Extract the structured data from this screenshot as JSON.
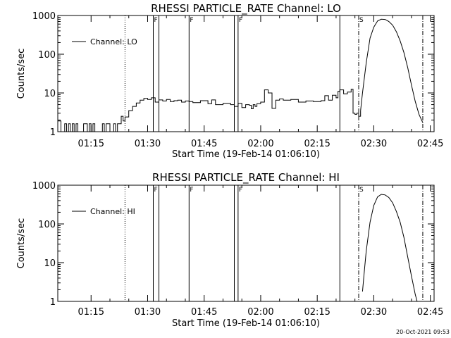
{
  "footer": {
    "timestamp": "20-Oct-2021 09:53"
  },
  "chart_data": [
    {
      "type": "line",
      "title": "RHESSI PARTICLE_RATE Channel: LO",
      "xlabel": "Start Time (19-Feb-14 01:06:10)",
      "ylabel": "Counts/sec",
      "yscale": "log",
      "ylim": [
        1,
        1000
      ],
      "xlim": [
        "01:06:10",
        "02:46:00"
      ],
      "xticks": [
        "01:15",
        "01:30",
        "01:45",
        "02:00",
        "02:15",
        "02:30",
        "02:45"
      ],
      "yticks": [
        "1",
        "10",
        "100",
        "1000"
      ],
      "legend": {
        "label": "Channel: LO",
        "position": "top-left"
      },
      "grid": false,
      "markers": {
        "solid_lines": [
          "01:31:30",
          "01:33:00",
          "01:41:00",
          "01:53:00",
          "01:54:00",
          "02:21:00"
        ],
        "dotted_lines": [
          "01:24:00"
        ],
        "dash_dot_lines": [
          "02:26:00",
          "02:43:00"
        ],
        "flags": [
          {
            "label": "F",
            "time": "01:31:30"
          },
          {
            "label": "F",
            "time": "01:41:00"
          },
          {
            "label": "F",
            "time": "01:54:00"
          },
          {
            "label": "S",
            "time": "02:26:00"
          }
        ]
      },
      "series": [
        {
          "x": [
            "01:06:10",
            "01:07:00",
            "01:08:00",
            "01:08:30",
            "01:09:00",
            "01:09:30",
            "01:10:00",
            "01:10:30",
            "01:11:00",
            "01:11:30",
            "01:12:00",
            "01:13:00",
            "01:14:00",
            "01:14:30",
            "01:15:00",
            "01:15:30",
            "01:16:00",
            "01:17:00",
            "01:18:00",
            "01:18:30",
            "01:19:00",
            "01:20:00",
            "01:21:00",
            "01:21:30",
            "01:22:00",
            "01:22:30",
            "01:23:00",
            "01:23:30",
            "01:24:00",
            "01:25:00",
            "01:26:00",
            "01:27:00",
            "01:28:00",
            "01:29:00",
            "01:30:00",
            "01:31:00",
            "01:32:00",
            "01:33:00",
            "01:34:00",
            "01:35:00",
            "01:36:00",
            "01:37:00",
            "01:38:00",
            "01:39:00",
            "01:40:00",
            "01:41:00",
            "01:42:00",
            "01:44:00",
            "01:46:00",
            "01:47:00",
            "01:48:00",
            "01:50:00",
            "01:52:00",
            "01:53:00",
            "01:54:00",
            "01:55:00",
            "01:56:00",
            "01:57:00",
            "01:57:30",
            "01:58:00",
            "01:58:30",
            "01:59:00",
            "02:00:00",
            "02:01:00",
            "02:02:00",
            "02:03:00",
            "02:04:00",
            "02:05:00",
            "02:06:00",
            "02:08:00",
            "02:10:00",
            "02:12:00",
            "02:14:00",
            "02:16:00",
            "02:17:00",
            "02:18:00",
            "02:19:00",
            "02:20:00",
            "02:20:30",
            "02:21:00",
            "02:22:00",
            "02:23:00",
            "02:24:00",
            "02:24:30",
            "02:25:00",
            "02:25:30",
            "02:26:00",
            "02:26:30"
          ],
          "y": [
            1.9,
            1,
            1.6,
            1,
            1.6,
            1,
            1.6,
            1,
            1.6,
            1,
            1,
            1.6,
            1,
            1.6,
            1,
            1.6,
            1,
            1,
            1.6,
            1,
            1.6,
            1,
            1.6,
            1,
            1.6,
            1.6,
            2.5,
            1.9,
            2.4,
            3.5,
            4.5,
            5.5,
            6.5,
            7.2,
            6.8,
            7.5,
            5.8,
            6.6,
            6.2,
            6.8,
            6.0,
            6.3,
            6.5,
            5.8,
            6.2,
            6.0,
            5.6,
            6.3,
            5.3,
            6.6,
            5.0,
            5.4,
            5.0,
            4.5,
            5.4,
            4.2,
            5.0,
            4.8,
            3.9,
            5.0,
            4.5,
            5.3,
            5.8,
            12,
            10,
            4.0,
            6.5,
            7.0,
            6.5,
            6.8,
            5.8,
            6.2,
            6.0,
            6.3,
            8.5,
            6.5,
            8.7,
            7.5,
            11,
            12,
            9.5,
            10.5,
            12.5,
            3.0,
            2.8,
            3.0,
            2.5,
            3.5
          ],
          "interpolation": "steps"
        },
        {
          "x": [
            "02:26:30",
            "02:27:00",
            "02:28:00",
            "02:29:00",
            "02:30:00",
            "02:31:00",
            "02:32:00",
            "02:33:00",
            "02:34:00",
            "02:35:00",
            "02:36:00",
            "02:37:00",
            "02:38:00",
            "02:39:00",
            "02:40:00",
            "02:41:00",
            "02:42:00",
            "02:43:00"
          ],
          "y": [
            3.5,
            10,
            60,
            260,
            500,
            720,
            800,
            790,
            700,
            560,
            380,
            220,
            110,
            45,
            16,
            6,
            2.8,
            1.7
          ]
        }
      ]
    },
    {
      "type": "line",
      "title": "RHESSI PARTICLE_RATE Channel: HI",
      "xlabel": "Start Time (19-Feb-14 01:06:10)",
      "ylabel": "Counts/sec",
      "yscale": "log",
      "ylim": [
        1,
        1000
      ],
      "xlim": [
        "01:06:10",
        "02:46:00"
      ],
      "xticks": [
        "01:15",
        "01:30",
        "01:45",
        "02:00",
        "02:15",
        "02:30",
        "02:45"
      ],
      "yticks": [
        "1",
        "10",
        "100",
        "1000"
      ],
      "legend": {
        "label": "Channel: HI",
        "position": "top-left"
      },
      "grid": false,
      "markers": {
        "solid_lines": [
          "01:31:30",
          "01:33:00",
          "01:41:00",
          "01:53:00",
          "01:54:00",
          "02:21:00"
        ],
        "dotted_lines": [
          "01:24:00"
        ],
        "dash_dot_lines": [
          "02:26:00",
          "02:43:00"
        ],
        "flags": [
          {
            "label": "F",
            "time": "01:31:30"
          },
          {
            "label": "F",
            "time": "01:41:00"
          },
          {
            "label": "F",
            "time": "01:54:00"
          },
          {
            "label": "S",
            "time": "02:26:00"
          }
        ]
      },
      "series": [
        {
          "x": [
            "02:27:00",
            "02:27:30",
            "02:28:00",
            "02:29:00",
            "02:30:00",
            "02:31:00",
            "02:32:00",
            "02:33:00",
            "02:34:00",
            "02:35:00",
            "02:36:00",
            "02:37:00",
            "02:38:00",
            "02:39:00",
            "02:40:00",
            "02:41:00",
            "02:41:30"
          ],
          "y": [
            1.8,
            6,
            20,
            110,
            300,
            500,
            580,
            560,
            480,
            350,
            210,
            110,
            45,
            14,
            4.5,
            1.5,
            1
          ]
        }
      ]
    }
  ]
}
